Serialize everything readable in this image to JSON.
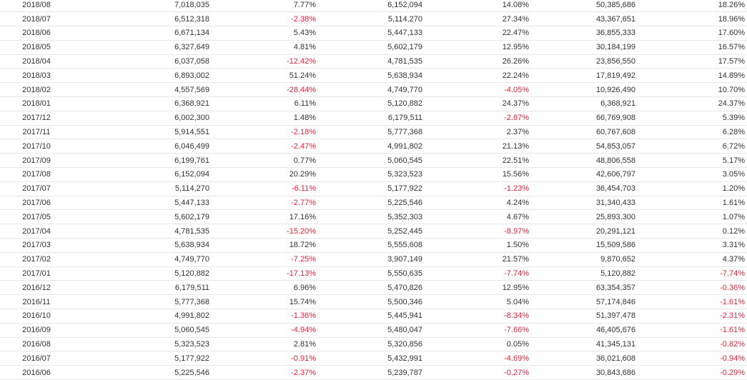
{
  "colors": {
    "text": "#333333",
    "negative": "#e8203a",
    "border": "#e8e8e8"
  },
  "rows": [
    {
      "month": "2018/08",
      "revenue": "7,018,035",
      "mom": "7.77%",
      "last_year": "6,152,094",
      "yoy": "14.08%",
      "cumulative": "50,385,686",
      "cum_yoy": "18.26%"
    },
    {
      "month": "2018/07",
      "revenue": "6,512,318",
      "mom": "-2.38%",
      "last_year": "5,114,270",
      "yoy": "27.34%",
      "cumulative": "43,367,651",
      "cum_yoy": "18.96%"
    },
    {
      "month": "2018/06",
      "revenue": "6,671,134",
      "mom": "5.43%",
      "last_year": "5,447,133",
      "yoy": "22.47%",
      "cumulative": "36,855,333",
      "cum_yoy": "17.60%"
    },
    {
      "month": "2018/05",
      "revenue": "6,327,649",
      "mom": "4.81%",
      "last_year": "5,602,179",
      "yoy": "12.95%",
      "cumulative": "30,184,199",
      "cum_yoy": "16.57%"
    },
    {
      "month": "2018/04",
      "revenue": "6,037,058",
      "mom": "-12.42%",
      "last_year": "4,781,535",
      "yoy": "26.26%",
      "cumulative": "23,856,550",
      "cum_yoy": "17.57%"
    },
    {
      "month": "2018/03",
      "revenue": "6,893,002",
      "mom": "51.24%",
      "last_year": "5,638,934",
      "yoy": "22.24%",
      "cumulative": "17,819,492",
      "cum_yoy": "14.89%"
    },
    {
      "month": "2018/02",
      "revenue": "4,557,569",
      "mom": "-28.44%",
      "last_year": "4,749,770",
      "yoy": "-4.05%",
      "cumulative": "10,926,490",
      "cum_yoy": "10.70%"
    },
    {
      "month": "2018/01",
      "revenue": "6,368,921",
      "mom": "6.11%",
      "last_year": "5,120,882",
      "yoy": "24.37%",
      "cumulative": "6,368,921",
      "cum_yoy": "24.37%"
    },
    {
      "month": "2017/12",
      "revenue": "6,002,300",
      "mom": "1.48%",
      "last_year": "6,179,511",
      "yoy": "-2.87%",
      "cumulative": "66,769,908",
      "cum_yoy": "5.39%"
    },
    {
      "month": "2017/11",
      "revenue": "5,914,551",
      "mom": "-2.18%",
      "last_year": "5,777,368",
      "yoy": "2.37%",
      "cumulative": "60,767,608",
      "cum_yoy": "6.28%"
    },
    {
      "month": "2017/10",
      "revenue": "6,046,499",
      "mom": "-2.47%",
      "last_year": "4,991,802",
      "yoy": "21.13%",
      "cumulative": "54,853,057",
      "cum_yoy": "6.72%"
    },
    {
      "month": "2017/09",
      "revenue": "6,199,761",
      "mom": "0.77%",
      "last_year": "5,060,545",
      "yoy": "22.51%",
      "cumulative": "48,806,558",
      "cum_yoy": "5.17%"
    },
    {
      "month": "2017/08",
      "revenue": "6,152,094",
      "mom": "20.29%",
      "last_year": "5,323,523",
      "yoy": "15.56%",
      "cumulative": "42,606,797",
      "cum_yoy": "3.05%"
    },
    {
      "month": "2017/07",
      "revenue": "5,114,270",
      "mom": "-6.11%",
      "last_year": "5,177,922",
      "yoy": "-1.23%",
      "cumulative": "36,454,703",
      "cum_yoy": "1.20%"
    },
    {
      "month": "2017/06",
      "revenue": "5,447,133",
      "mom": "-2.77%",
      "last_year": "5,225,546",
      "yoy": "4.24%",
      "cumulative": "31,340,433",
      "cum_yoy": "1.61%"
    },
    {
      "month": "2017/05",
      "revenue": "5,602,179",
      "mom": "17.16%",
      "last_year": "5,352,303",
      "yoy": "4.67%",
      "cumulative": "25,893,300",
      "cum_yoy": "1.07%"
    },
    {
      "month": "2017/04",
      "revenue": "4,781,535",
      "mom": "-15.20%",
      "last_year": "5,252,445",
      "yoy": "-8.97%",
      "cumulative": "20,291,121",
      "cum_yoy": "0.12%"
    },
    {
      "month": "2017/03",
      "revenue": "5,638,934",
      "mom": "18.72%",
      "last_year": "5,555,608",
      "yoy": "1.50%",
      "cumulative": "15,509,586",
      "cum_yoy": "3.31%"
    },
    {
      "month": "2017/02",
      "revenue": "4,749,770",
      "mom": "-7.25%",
      "last_year": "3,907,149",
      "yoy": "21.57%",
      "cumulative": "9,870,652",
      "cum_yoy": "4.37%"
    },
    {
      "month": "2017/01",
      "revenue": "5,120,882",
      "mom": "-17.13%",
      "last_year": "5,550,635",
      "yoy": "-7.74%",
      "cumulative": "5,120,882",
      "cum_yoy": "-7.74%"
    },
    {
      "month": "2016/12",
      "revenue": "6,179,511",
      "mom": "6.96%",
      "last_year": "5,470,826",
      "yoy": "12.95%",
      "cumulative": "63,354,357",
      "cum_yoy": "-0.36%"
    },
    {
      "month": "2016/11",
      "revenue": "5,777,368",
      "mom": "15.74%",
      "last_year": "5,500,346",
      "yoy": "5.04%",
      "cumulative": "57,174,846",
      "cum_yoy": "-1.61%"
    },
    {
      "month": "2016/10",
      "revenue": "4,991,802",
      "mom": "-1.36%",
      "last_year": "5,445,941",
      "yoy": "-8.34%",
      "cumulative": "51,397,478",
      "cum_yoy": "-2.31%"
    },
    {
      "month": "2016/09",
      "revenue": "5,060,545",
      "mom": "-4.94%",
      "last_year": "5,480,047",
      "yoy": "-7.66%",
      "cumulative": "46,405,676",
      "cum_yoy": "-1.61%"
    },
    {
      "month": "2016/08",
      "revenue": "5,323,523",
      "mom": "2.81%",
      "last_year": "5,320,856",
      "yoy": "0.05%",
      "cumulative": "41,345,131",
      "cum_yoy": "-0.82%"
    },
    {
      "month": "2016/07",
      "revenue": "5,177,922",
      "mom": "-0.91%",
      "last_year": "5,432,991",
      "yoy": "-4.69%",
      "cumulative": "36,021,608",
      "cum_yoy": "-0.94%"
    },
    {
      "month": "2016/06",
      "revenue": "5,225,546",
      "mom": "-2.37%",
      "last_year": "5,239,787",
      "yoy": "-0.27%",
      "cumulative": "30,843,686",
      "cum_yoy": "-0.29%"
    }
  ]
}
